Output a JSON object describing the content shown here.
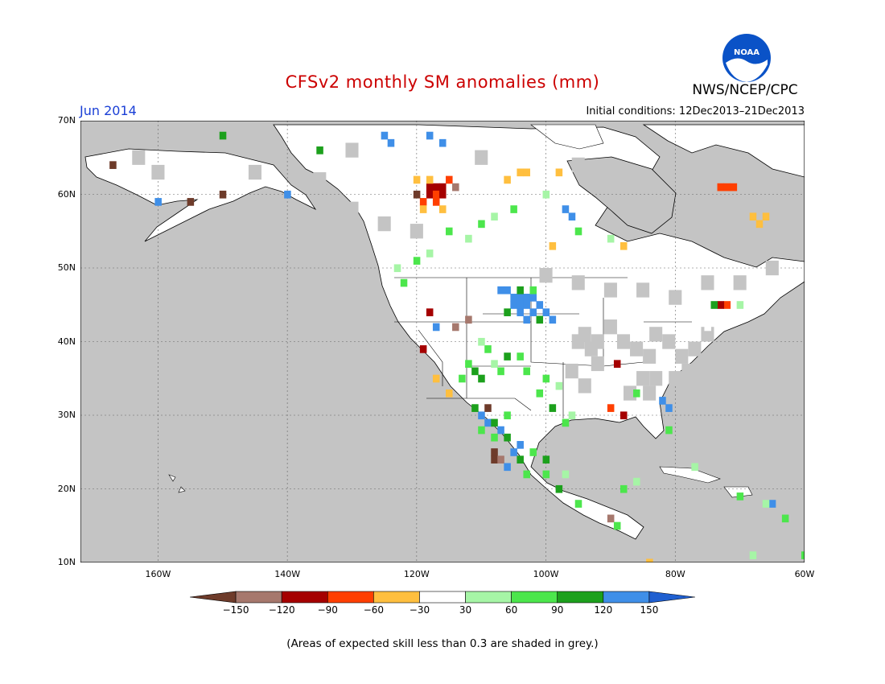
{
  "title": "CFSv2 monthly SM anomalies (mm)",
  "valid_month": "Jun 2014",
  "agency": "NWS/NCEP/CPC",
  "logo_text": "NOAA",
  "initial_conditions": "Initial conditions: 12Dec2013–21Dec2013",
  "footnote": "(Areas of expected skill less than 0.3 are shaded in grey.)",
  "map": {
    "projection": "latitude-longitude",
    "lon_range": [
      -172,
      -60
    ],
    "lat_range": [
      10,
      70
    ],
    "background_color": "#c4c4c4",
    "lat_ticks": [
      "70N",
      "60N",
      "50N",
      "40N",
      "30N",
      "20N",
      "10N"
    ],
    "lon_ticks": [
      "160W",
      "140W",
      "120W",
      "100W",
      "80W",
      "60W"
    ],
    "gridlines": "dotted"
  },
  "colorbar": {
    "labels": [
      "−150",
      "−120",
      "−90",
      "−60",
      "−30",
      "30",
      "60",
      "90",
      "120",
      "150"
    ],
    "colors": [
      "#6e3b2a",
      "#a6786d",
      "#a50000",
      "#ff3f00",
      "#ffbf3f",
      "#ffffff",
      "#a6f5a6",
      "#4ce64c",
      "#1ca01c",
      "#3f8fe8",
      "#1f5fd0"
    ]
  },
  "anomaly_regions": [
    {
      "name": "northern-plains-positive",
      "value_range": "90 to 150 mm",
      "color": "#3f8fe8"
    },
    {
      "name": "northwest-mexico-positive",
      "value_range": "90 to 150 mm",
      "color": "#3f8fe8"
    },
    {
      "name": "western-canada-negative",
      "value_range": "-60 to -150 mm",
      "color": "#a50000"
    },
    {
      "name": "eastern-us-skill-grey",
      "value_range": "low skill",
      "color": "#c4c4c4"
    }
  ]
}
